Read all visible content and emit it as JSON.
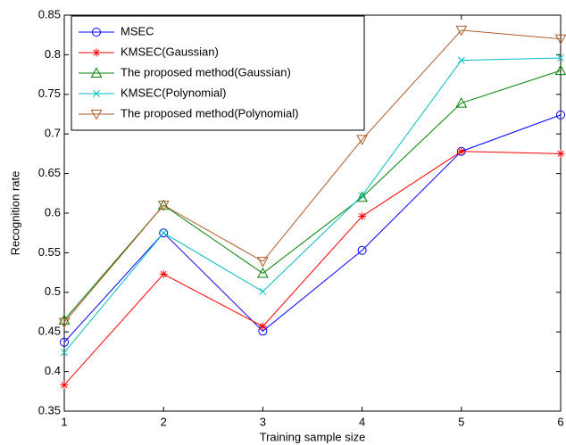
{
  "chart_data": {
    "type": "line",
    "x_label": "Training sample size",
    "y_label": "Recognition rate",
    "x": [
      1,
      2,
      3,
      4,
      5,
      6
    ],
    "xlim": [
      1,
      6
    ],
    "xticks": [
      1,
      2,
      3,
      4,
      5,
      6
    ],
    "ylim": [
      0.35,
      0.85
    ],
    "yticks": [
      0.35,
      0.4,
      0.45,
      0.5,
      0.55,
      0.6,
      0.65,
      0.7,
      0.75,
      0.8,
      0.85
    ],
    "grid": false,
    "legend": "upper left",
    "series": [
      {
        "name": "MSEC",
        "color": "#0000ff",
        "marker": "circle",
        "values": [
          0.437,
          0.575,
          0.451,
          0.553,
          0.678,
          0.724
        ]
      },
      {
        "name": "KMSEC(Gaussian)",
        "color": "#ff0000",
        "marker": "star",
        "values": [
          0.383,
          0.523,
          0.457,
          0.596,
          0.678,
          0.675
        ]
      },
      {
        "name": "The proposed method(Gaussian)",
        "color": "#008000",
        "marker": "triangle-up",
        "values": [
          0.465,
          0.61,
          0.524,
          0.62,
          0.739,
          0.78
        ]
      },
      {
        "name": "KMSEC(Polynomial)",
        "color": "#00bfbf",
        "marker": "x",
        "values": [
          0.424,
          0.575,
          0.501,
          0.622,
          0.793,
          0.796
        ]
      },
      {
        "name": "The proposed method(Polynomial)",
        "color": "#b05a2a",
        "marker": "triangle-down",
        "values": [
          0.462,
          0.61,
          0.539,
          0.693,
          0.831,
          0.82
        ]
      }
    ]
  }
}
